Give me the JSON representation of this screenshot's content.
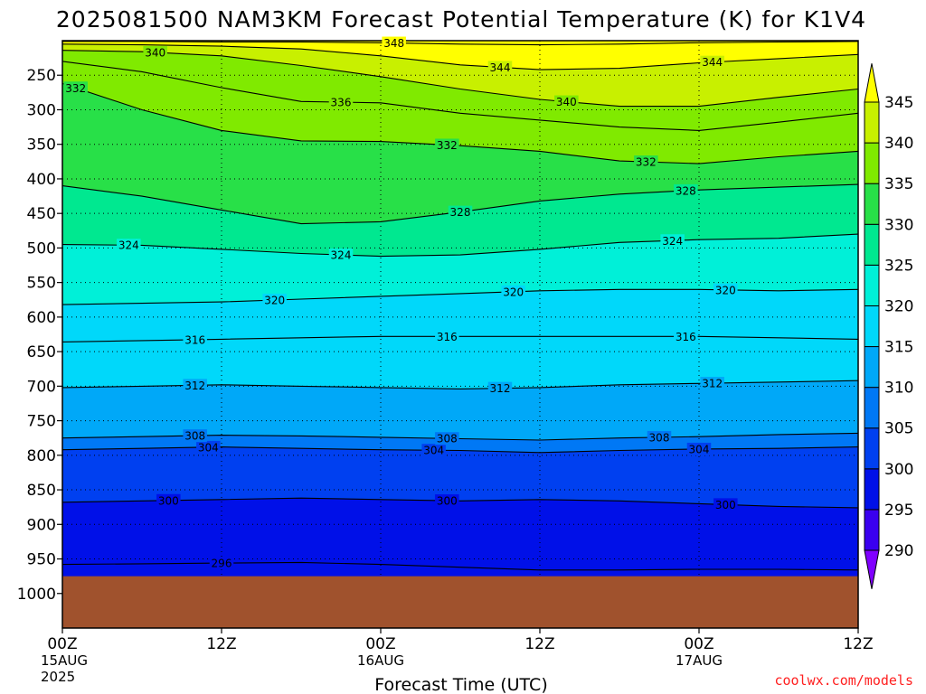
{
  "chart_data": {
    "type": "heatmap",
    "title": "2025081500 NAM3KM Forecast Potential Temperature (K) for K1V4",
    "xlabel": "Forecast Time (UTC)",
    "ylabel": "",
    "x_ticks": [
      {
        "hour": 0,
        "lines": [
          "00Z",
          "15AUG",
          "2025"
        ]
      },
      {
        "hour": 12,
        "lines": [
          "12Z"
        ]
      },
      {
        "hour": 24,
        "lines": [
          "00Z",
          "16AUG"
        ]
      },
      {
        "hour": 36,
        "lines": [
          "12Z"
        ]
      },
      {
        "hour": 48,
        "lines": [
          "00Z",
          "17AUG"
        ]
      },
      {
        "hour": 60,
        "lines": [
          "12Z"
        ]
      }
    ],
    "x_range_hours": [
      0,
      60
    ],
    "y_range_hpa": [
      1050,
      200
    ],
    "y_ticks": [
      250,
      300,
      350,
      400,
      450,
      500,
      550,
      600,
      650,
      700,
      750,
      800,
      850,
      900,
      950,
      1000
    ],
    "surface_pressure_hpa": 975,
    "colorbar": {
      "ticks": [
        290,
        295,
        300,
        305,
        310,
        315,
        320,
        325,
        330,
        335,
        340,
        345
      ],
      "bins": [
        {
          "from": 285,
          "to": 290,
          "color": "#8000ff"
        },
        {
          "from": 290,
          "to": 295,
          "color": "#3a00f0"
        },
        {
          "from": 295,
          "to": 300,
          "color": "#0010e8"
        },
        {
          "from": 300,
          "to": 305,
          "color": "#0040f0"
        },
        {
          "from": 305,
          "to": 310,
          "color": "#0078f5"
        },
        {
          "from": 310,
          "to": 315,
          "color": "#00a8f8"
        },
        {
          "from": 315,
          "to": 320,
          "color": "#00d8fa"
        },
        {
          "from": 320,
          "to": 325,
          "color": "#00f0d8"
        },
        {
          "from": 325,
          "to": 330,
          "color": "#00e890"
        },
        {
          "from": 330,
          "to": 335,
          "color": "#28e048"
        },
        {
          "from": 335,
          "to": 340,
          "color": "#80ea00"
        },
        {
          "from": 340,
          "to": 345,
          "color": "#c8f000"
        },
        {
          "from": 345,
          "to": 350,
          "color": "#ffff00"
        }
      ]
    },
    "isentropes": [
      {
        "theta": 296,
        "p": [
          958,
          957,
          956,
          955,
          958,
          962,
          966,
          966,
          965,
          965,
          966
        ],
        "labels": [
          {
            "hour": 12,
            "text": "296"
          }
        ]
      },
      {
        "theta": 300,
        "p": [
          868,
          866,
          864,
          862,
          864,
          866,
          864,
          866,
          870,
          874,
          876
        ],
        "labels": [
          {
            "hour": 8,
            "text": "300"
          },
          {
            "hour": 29,
            "text": "300"
          },
          {
            "hour": 50,
            "text": "300"
          }
        ]
      },
      {
        "theta": 304,
        "p": [
          792,
          790,
          788,
          790,
          792,
          793,
          796,
          793,
          791,
          790,
          788
        ],
        "labels": [
          {
            "hour": 11,
            "text": "304"
          },
          {
            "hour": 28,
            "text": "304"
          },
          {
            "hour": 48,
            "text": "304"
          }
        ]
      },
      {
        "theta": 308,
        "p": [
          775,
          773,
          771,
          772,
          774,
          776,
          778,
          775,
          773,
          770,
          768
        ],
        "labels": [
          {
            "hour": 10,
            "text": "308"
          },
          {
            "hour": 29,
            "text": "308"
          },
          {
            "hour": 45,
            "text": "308"
          }
        ]
      },
      {
        "theta": 312,
        "p": [
          702,
          700,
          698,
          700,
          702,
          704,
          702,
          698,
          696,
          694,
          692
        ],
        "labels": [
          {
            "hour": 10,
            "text": "312"
          },
          {
            "hour": 33,
            "text": "312"
          },
          {
            "hour": 49,
            "text": "312"
          }
        ]
      },
      {
        "theta": 316,
        "p": [
          636,
          634,
          632,
          630,
          628,
          628,
          628,
          628,
          628,
          630,
          632
        ],
        "labels": [
          {
            "hour": 10,
            "text": "316"
          },
          {
            "hour": 29,
            "text": "316"
          },
          {
            "hour": 47,
            "text": "316"
          }
        ]
      },
      {
        "theta": 320,
        "p": [
          582,
          580,
          578,
          574,
          570,
          566,
          562,
          560,
          560,
          562,
          560
        ],
        "labels": [
          {
            "hour": 16,
            "text": "320"
          },
          {
            "hour": 34,
            "text": "320"
          },
          {
            "hour": 50,
            "text": "320"
          }
        ]
      },
      {
        "theta": 324,
        "p": [
          495,
          496,
          502,
          508,
          512,
          510,
          502,
          492,
          488,
          486,
          480
        ],
        "labels": [
          {
            "hour": 5,
            "text": "324"
          },
          {
            "hour": 21,
            "text": "324"
          },
          {
            "hour": 46,
            "text": "324"
          }
        ]
      },
      {
        "theta": 328,
        "p": [
          410,
          425,
          445,
          465,
          462,
          448,
          432,
          422,
          416,
          412,
          408
        ],
        "labels": [
          {
            "hour": 30,
            "text": "328"
          },
          {
            "hour": 47,
            "text": "328"
          }
        ]
      },
      {
        "theta": 332,
        "p": [
          262,
          300,
          330,
          345,
          346,
          352,
          360,
          374,
          378,
          368,
          360
        ],
        "labels": [
          {
            "hour": 1,
            "text": "332"
          },
          {
            "hour": 29,
            "text": "332"
          },
          {
            "hour": 44,
            "text": "332"
          }
        ]
      },
      {
        "theta": 336,
        "p": [
          230,
          245,
          268,
          288,
          290,
          305,
          315,
          325,
          330,
          318,
          305
        ],
        "labels": [
          {
            "hour": 21,
            "text": "336"
          }
        ]
      },
      {
        "theta": 340,
        "p": [
          214,
          216,
          222,
          236,
          252,
          270,
          285,
          295,
          295,
          282,
          270
        ],
        "labels": [
          {
            "hour": 7,
            "text": "340"
          },
          {
            "hour": 38,
            "text": "340"
          }
        ]
      },
      {
        "theta": 344,
        "p": [
          205,
          206,
          208,
          212,
          222,
          235,
          242,
          240,
          232,
          226,
          220
        ],
        "labels": [
          {
            "hour": 33,
            "text": "344"
          },
          {
            "hour": 49,
            "text": "344"
          }
        ]
      },
      {
        "theta": 348,
        "p": [
          201,
          201,
          202,
          202,
          203,
          205,
          206,
          205,
          203,
          202,
          201
        ],
        "labels": [
          {
            "hour": 25,
            "text": "348"
          }
        ]
      }
    ]
  },
  "credit": "coolwx.com/models"
}
